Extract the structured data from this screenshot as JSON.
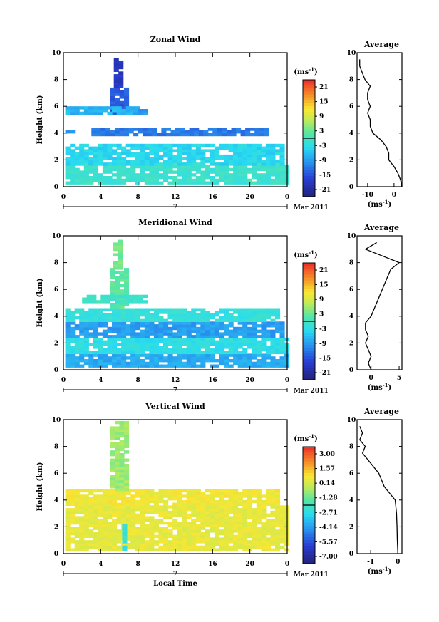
{
  "chart_data": [
    {
      "type": "heatmap",
      "title": "Zonal Wind",
      "ylabel": "Height (km)",
      "xlabel": "",
      "x_ticks": [
        "0",
        "4",
        "8",
        "12",
        "16",
        "20",
        "0"
      ],
      "y_ticks": [
        "0",
        "2",
        "4",
        "6",
        "8",
        "10"
      ],
      "xlim": [
        0,
        24
      ],
      "ylim": [
        0,
        10
      ],
      "date_label": "7",
      "month_label": "Mar 2011",
      "colorbar": {
        "unit_label": "(ms",
        "unit_exp": "-1",
        "unit_close": ")",
        "ticks": [
          "21",
          "15",
          "9",
          "3",
          "-3",
          "-9",
          "-15",
          "-21"
        ],
        "range": [
          -24,
          24
        ]
      },
      "profile": {
        "title": "Average",
        "unit_label": "(ms",
        "unit_exp": "-1",
        "unit_close": ")",
        "x_ticks": [
          "-10",
          "0"
        ],
        "xlim": [
          -14,
          3
        ],
        "points": [
          [
            3,
            0.0
          ],
          [
            2.5,
            0.5
          ],
          [
            1.5,
            1.0
          ],
          [
            0,
            1.5
          ],
          [
            -2,
            2.0
          ],
          [
            -2,
            2.5
          ],
          [
            -3,
            3.0
          ],
          [
            -5,
            3.5
          ],
          [
            -8,
            4.0
          ],
          [
            -9,
            4.5
          ],
          [
            -9,
            5.0
          ],
          [
            -10,
            5.5
          ],
          [
            -9,
            6.0
          ],
          [
            -10,
            6.5
          ],
          [
            -10,
            7.0
          ],
          [
            -9,
            7.5
          ],
          [
            -11,
            8.0
          ],
          [
            -12,
            8.5
          ],
          [
            -13,
            9.0
          ],
          [
            -13,
            9.5
          ]
        ]
      },
      "value_range": [
        -24,
        24
      ],
      "regions": [
        {
          "t0": 0.2,
          "t1": 23.8,
          "h0": 0.2,
          "h1": 1.6,
          "v": -1
        },
        {
          "t0": 0.2,
          "t1": 23.5,
          "h0": 1.6,
          "h1": 3.2,
          "v": -4
        },
        {
          "t0": 3.0,
          "t1": 22.0,
          "h0": 3.8,
          "h1": 4.4,
          "v": -12
        },
        {
          "t0": 0.2,
          "t1": 1.2,
          "h0": 4.0,
          "h1": 4.4,
          "v": -10
        },
        {
          "t0": 5.0,
          "t1": 6.8,
          "h0": 5.4,
          "h1": 7.4,
          "v": -14
        },
        {
          "t0": 5.4,
          "t1": 6.0,
          "h0": 7.4,
          "h1": 9.5,
          "v": -18
        },
        {
          "t0": 0.2,
          "t1": 8.0,
          "h0": 5.4,
          "h1": 6.0,
          "v": -7
        },
        {
          "t0": 7.5,
          "t1": 9.0,
          "h0": 5.4,
          "h1": 5.8,
          "v": -9
        }
      ]
    },
    {
      "type": "heatmap",
      "title": "Meridional Wind",
      "ylabel": "Height (km)",
      "xlabel": "",
      "x_ticks": [
        "0",
        "4",
        "8",
        "12",
        "16",
        "20",
        "0"
      ],
      "y_ticks": [
        "0",
        "2",
        "4",
        "6",
        "8",
        "10"
      ],
      "xlim": [
        0,
        24
      ],
      "ylim": [
        0,
        10
      ],
      "date_label": "7",
      "month_label": "Mar 2011",
      "colorbar": {
        "unit_label": "(ms",
        "unit_exp": "-1",
        "unit_close": ")",
        "ticks": [
          "21",
          "15",
          "9",
          "3",
          "-3",
          "-9",
          "-15",
          "-21"
        ],
        "range": [
          -24,
          24
        ]
      },
      "profile": {
        "title": "Average",
        "unit_label": "(ms",
        "unit_exp": "-1",
        "unit_close": ")",
        "x_ticks": [
          "0",
          "5"
        ],
        "xlim": [
          -2.5,
          5.5
        ],
        "points": [
          [
            0,
            0.0
          ],
          [
            -0.5,
            0.5
          ],
          [
            0,
            1.0
          ],
          [
            -0.5,
            1.5
          ],
          [
            -1,
            2.0
          ],
          [
            -0.5,
            2.5
          ],
          [
            -1,
            3.0
          ],
          [
            -1,
            3.5
          ],
          [
            0,
            4.0
          ],
          [
            0.5,
            4.5
          ],
          [
            1,
            5.0
          ],
          [
            1.5,
            5.5
          ],
          [
            2,
            6.0
          ],
          [
            2.5,
            6.5
          ],
          [
            3,
            7.0
          ],
          [
            3.5,
            7.5
          ],
          [
            5,
            8.0
          ],
          [
            2,
            8.5
          ],
          [
            -1,
            9.0
          ],
          [
            1,
            9.5
          ]
        ]
      },
      "value_range": [
        -24,
        24
      ],
      "regions": [
        {
          "t0": 0.2,
          "t1": 23.8,
          "h0": 0.2,
          "h1": 1.2,
          "v": -8
        },
        {
          "t0": 0.2,
          "t1": 23.8,
          "h0": 1.2,
          "h1": 2.4,
          "v": -3
        },
        {
          "t0": 0.2,
          "t1": 23.5,
          "h0": 2.4,
          "h1": 3.6,
          "v": -9
        },
        {
          "t0": 0.2,
          "t1": 23.0,
          "h0": 3.6,
          "h1": 4.6,
          "v": -2
        },
        {
          "t0": 5.0,
          "t1": 7.0,
          "h0": 4.6,
          "h1": 7.5,
          "v": 2
        },
        {
          "t0": 5.3,
          "t1": 6.3,
          "h0": 7.5,
          "h1": 9.6,
          "v": 4
        },
        {
          "t0": 2.0,
          "t1": 9.0,
          "h0": 5.0,
          "h1": 5.6,
          "v": -1
        }
      ]
    },
    {
      "type": "heatmap",
      "title": "Vertical Wind",
      "ylabel": "Height (km)",
      "xlabel": "Local Time",
      "x_ticks": [
        "0",
        "4",
        "8",
        "12",
        "16",
        "20",
        "0"
      ],
      "y_ticks": [
        "0",
        "2",
        "4",
        "6",
        "8",
        "10"
      ],
      "xlim": [
        0,
        24
      ],
      "ylim": [
        0,
        10
      ],
      "date_label": "7",
      "month_label": "Mar 2011",
      "colorbar": {
        "unit_label": "(ms",
        "unit_exp": "-1",
        "unit_close": ")",
        "ticks": [
          "3.00",
          "1.57",
          "0.14",
          "-1.28",
          "-2.71",
          "-4.14",
          "-5.57",
          "-7.00"
        ],
        "range": [
          -8.0,
          3.7
        ]
      },
      "profile": {
        "title": "Average",
        "unit_label": "(ms",
        "unit_exp": "-1",
        "unit_close": ")",
        "x_ticks": [
          "-1",
          "0"
        ],
        "xlim": [
          -1.5,
          0.15
        ],
        "points": [
          [
            0,
            0.0
          ],
          [
            -0.02,
            1.0
          ],
          [
            -0.03,
            2.0
          ],
          [
            -0.05,
            3.0
          ],
          [
            -0.1,
            4.0
          ],
          [
            -0.3,
            4.5
          ],
          [
            -0.5,
            5.0
          ],
          [
            -0.6,
            5.5
          ],
          [
            -0.7,
            6.0
          ],
          [
            -0.9,
            6.5
          ],
          [
            -1.1,
            7.0
          ],
          [
            -1.3,
            7.5
          ],
          [
            -1.2,
            8.0
          ],
          [
            -1.4,
            8.5
          ],
          [
            -1.3,
            9.0
          ],
          [
            -1.4,
            9.5
          ]
        ]
      },
      "value_range": [
        -8.0,
        3.7
      ],
      "regions": [
        {
          "t0": 0.2,
          "t1": 23.8,
          "h0": 0.2,
          "h1": 3.6,
          "v": 0.4
        },
        {
          "t0": 0.2,
          "t1": 23.0,
          "h0": 3.6,
          "h1": 4.7,
          "v": 0.6
        },
        {
          "t0": 5.0,
          "t1": 7.0,
          "h0": 4.7,
          "h1": 9.8,
          "v": -0.8
        },
        {
          "t0": 6.3,
          "t1": 6.8,
          "h0": 0.2,
          "h1": 2.0,
          "v": -2.5
        }
      ]
    }
  ]
}
